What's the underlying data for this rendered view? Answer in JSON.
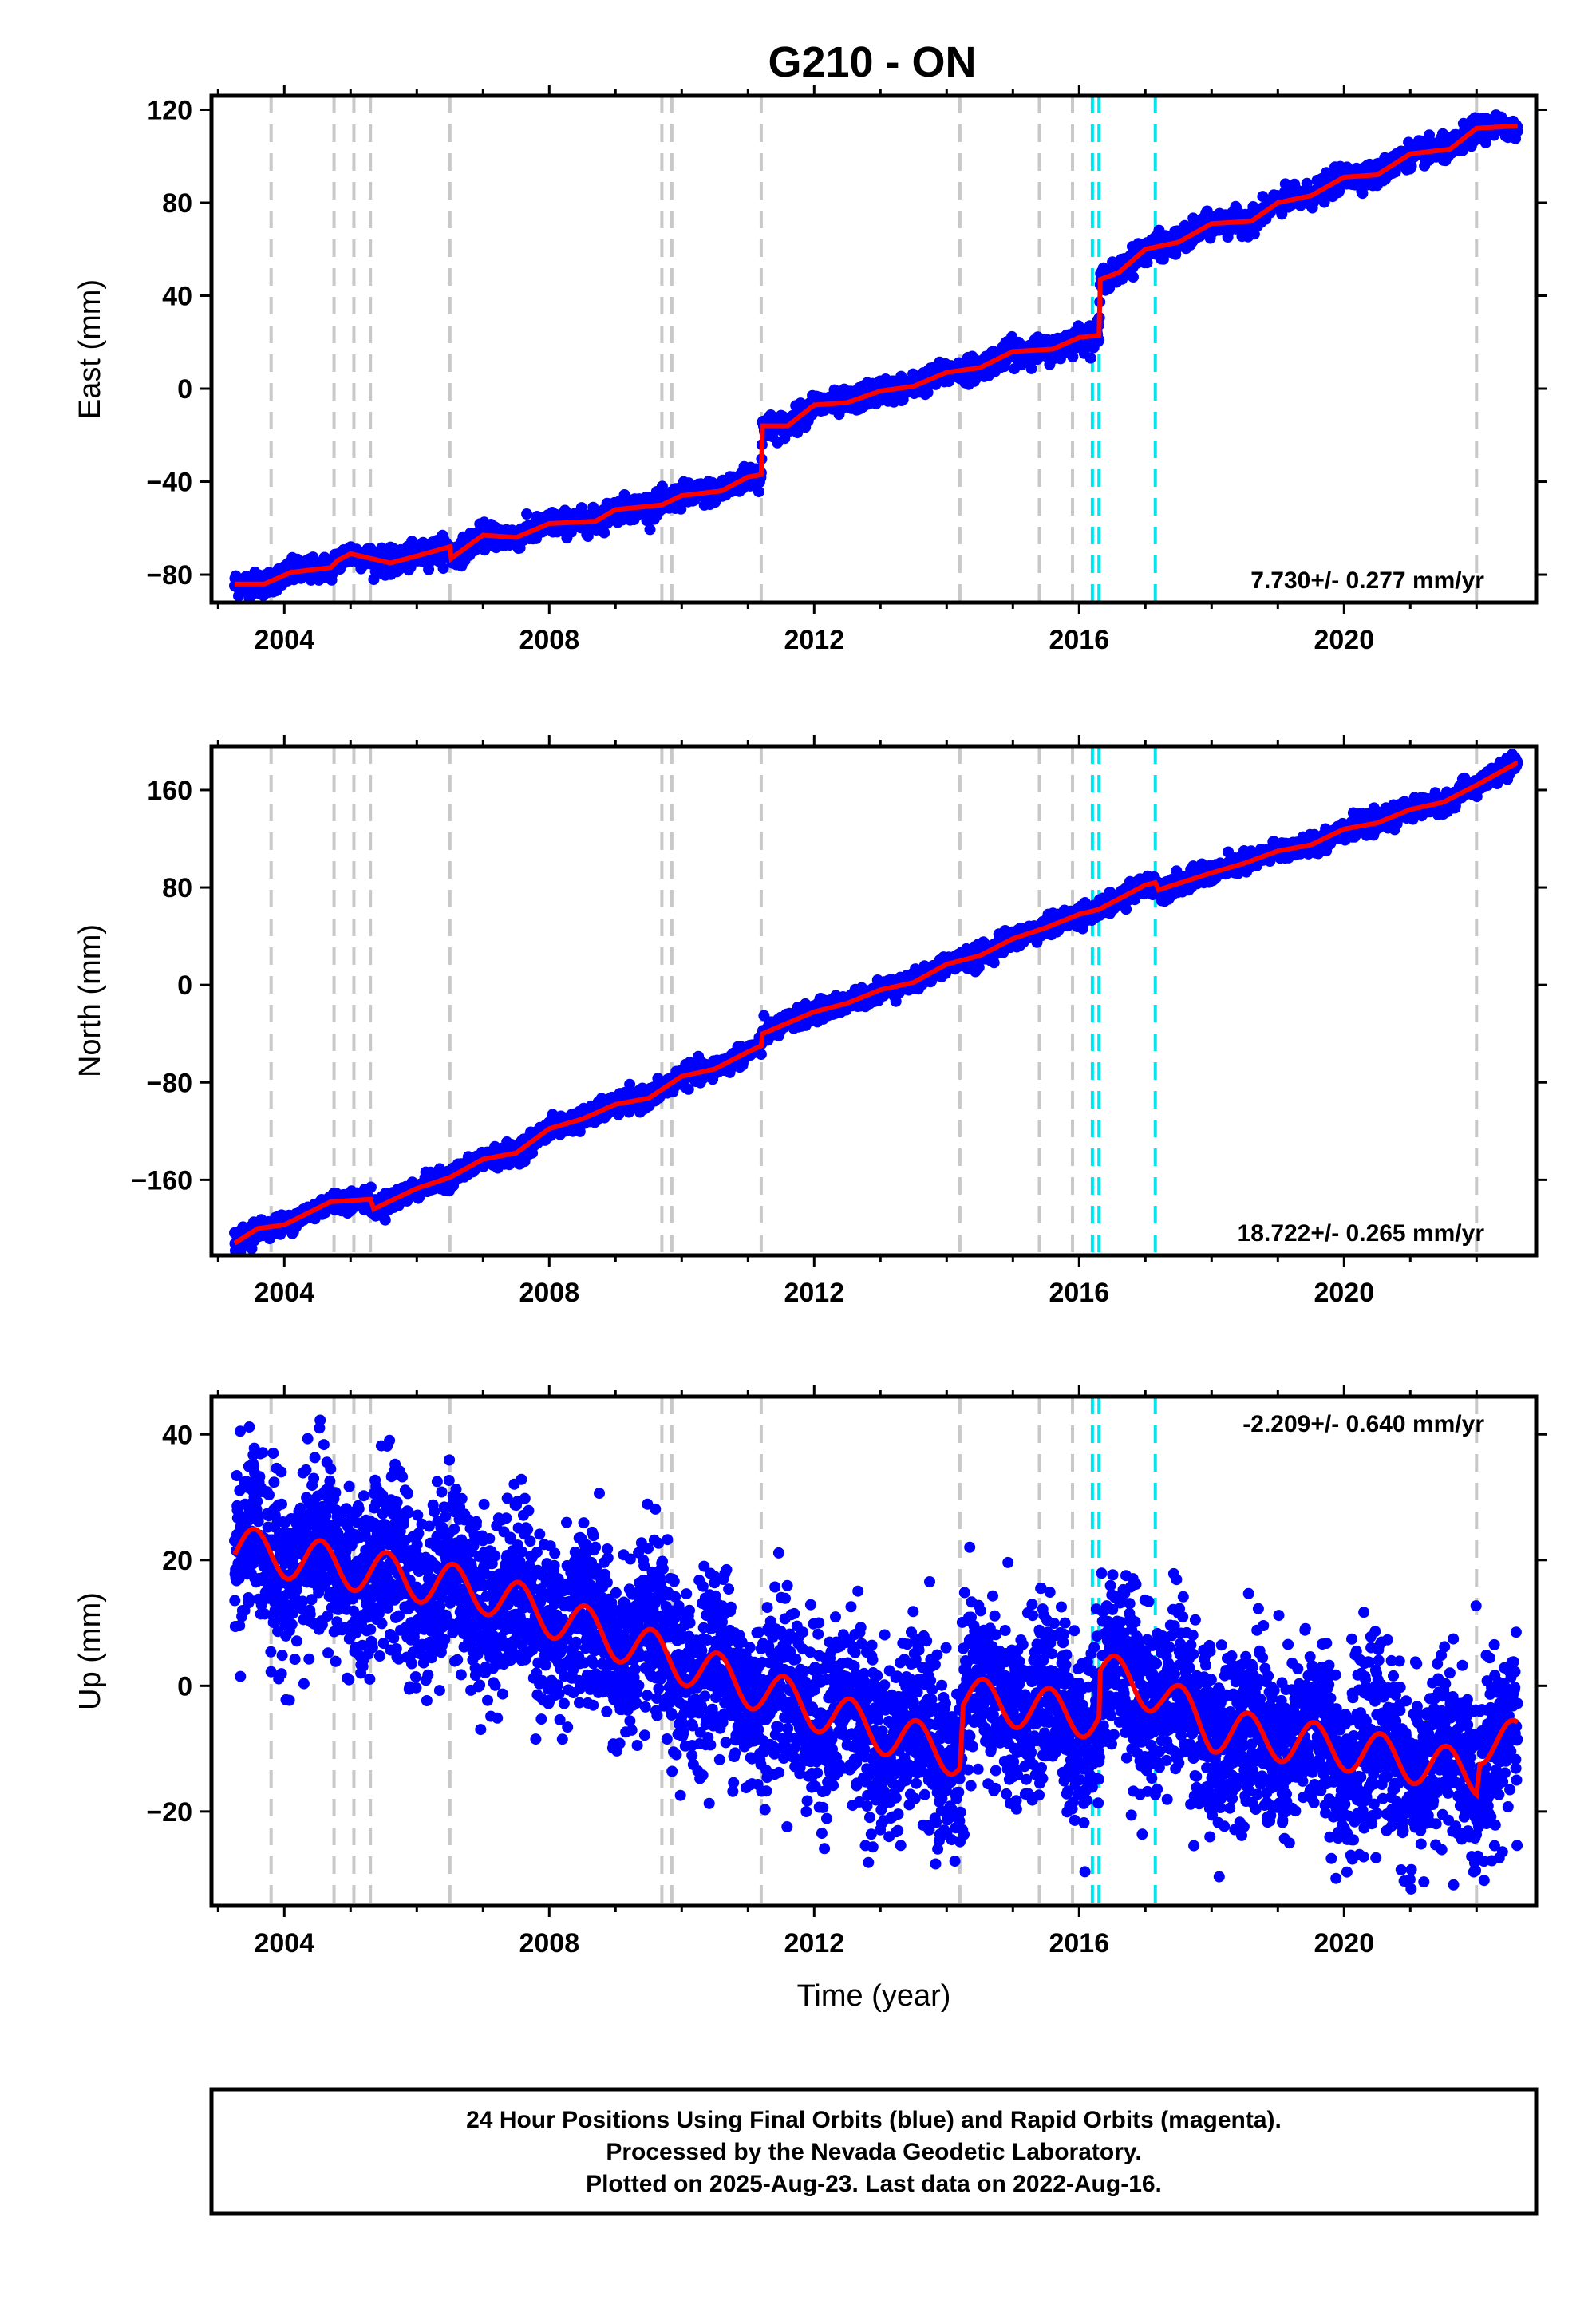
{
  "title": "G210 - ON",
  "colors": {
    "data_points": "#0000ff",
    "model_line": "#ff0000",
    "equipment_change": "#c8c8c8",
    "earthquake": "#00e5ee"
  },
  "chart_data": [
    {
      "type": "scatter",
      "component": "east",
      "ylabel": "East (mm)",
      "xlabel": "",
      "xlim": [
        2002.9,
        2022.9
      ],
      "ylim": [
        -92,
        126
      ],
      "x_ticks": [
        2004,
        2008,
        2012,
        2016,
        2020
      ],
      "y_ticks": [
        -80,
        -40,
        0,
        40,
        80,
        120
      ],
      "y_tick_labels": [
        "−80",
        "−40",
        "0",
        "40",
        "80",
        "120"
      ],
      "rate_text": "7.730+/- 0.277 mm/yr",
      "rate_position": "bottom-right",
      "gray_dashed_x": [
        2003.8,
        2004.75,
        2005.05,
        2005.3,
        2006.5,
        2009.7,
        2009.85,
        2011.2,
        2014.2,
        2015.4,
        2015.9,
        2022.0
      ],
      "cyan_dashed_x": [
        2016.2,
        2016.3,
        2017.15
      ],
      "model_curve": [
        [
          2003.25,
          -84
        ],
        [
          2003.7,
          -84
        ],
        [
          2004.1,
          -79
        ],
        [
          2004.7,
          -77
        ],
        [
          2004.8,
          -74
        ],
        [
          2005.0,
          -71
        ],
        [
          2005.3,
          -73
        ],
        [
          2005.6,
          -75
        ],
        [
          2006.0,
          -72
        ],
        [
          2006.5,
          -68
        ],
        [
          2006.52,
          -73
        ],
        [
          2007.0,
          -63
        ],
        [
          2007.5,
          -64
        ],
        [
          2008.0,
          -58
        ],
        [
          2008.7,
          -57
        ],
        [
          2009.0,
          -52
        ],
        [
          2009.7,
          -50
        ],
        [
          2010.0,
          -46
        ],
        [
          2010.6,
          -44
        ],
        [
          2011.0,
          -38
        ],
        [
          2011.2,
          -37
        ],
        [
          2011.22,
          -16
        ],
        [
          2011.6,
          -16
        ],
        [
          2012.0,
          -7
        ],
        [
          2012.5,
          -6
        ],
        [
          2013.0,
          -1
        ],
        [
          2013.5,
          1
        ],
        [
          2014.0,
          7
        ],
        [
          2014.5,
          9
        ],
        [
          2015.0,
          16
        ],
        [
          2015.6,
          17
        ],
        [
          2016.0,
          22
        ],
        [
          2016.3,
          23
        ],
        [
          2016.32,
          47
        ],
        [
          2016.6,
          50
        ],
        [
          2017.0,
          60
        ],
        [
          2017.5,
          63
        ],
        [
          2018.0,
          71
        ],
        [
          2018.6,
          72
        ],
        [
          2019.0,
          80
        ],
        [
          2019.5,
          83
        ],
        [
          2020.0,
          91
        ],
        [
          2020.5,
          92
        ],
        [
          2021.0,
          101
        ],
        [
          2021.6,
          103
        ],
        [
          2022.0,
          112
        ],
        [
          2022.6,
          113
        ]
      ],
      "scatter_noise_mm": 2.5
    },
    {
      "type": "scatter",
      "component": "north",
      "ylabel": "North (mm)",
      "xlabel": "",
      "xlim": [
        2002.9,
        2022.9
      ],
      "ylim": [
        -222,
        196
      ],
      "x_ticks": [
        2004,
        2008,
        2012,
        2016,
        2020
      ],
      "y_ticks": [
        -160,
        -80,
        0,
        80,
        160
      ],
      "y_tick_labels": [
        "−160",
        "−80",
        "0",
        "80",
        "160"
      ],
      "rate_text": "18.722+/- 0.265 mm/yr",
      "rate_position": "bottom-right",
      "gray_dashed_x": [
        2003.8,
        2004.75,
        2005.05,
        2005.3,
        2006.5,
        2009.7,
        2009.85,
        2011.2,
        2014.2,
        2015.4,
        2015.9,
        2022.0
      ],
      "cyan_dashed_x": [
        2016.2,
        2016.3,
        2017.15
      ],
      "model_curve": [
        [
          2003.25,
          -212
        ],
        [
          2003.6,
          -200
        ],
        [
          2004.0,
          -197
        ],
        [
          2004.7,
          -178
        ],
        [
          2005.3,
          -176
        ],
        [
          2005.35,
          -184
        ],
        [
          2006.0,
          -167
        ],
        [
          2006.5,
          -158
        ],
        [
          2007.0,
          -143
        ],
        [
          2007.5,
          -138
        ],
        [
          2008.0,
          -118
        ],
        [
          2008.5,
          -110
        ],
        [
          2009.0,
          -98
        ],
        [
          2009.5,
          -93
        ],
        [
          2010.0,
          -75
        ],
        [
          2010.5,
          -69
        ],
        [
          2011.0,
          -55
        ],
        [
          2011.2,
          -50
        ],
        [
          2011.22,
          -40
        ],
        [
          2012.0,
          -22
        ],
        [
          2012.5,
          -15
        ],
        [
          2013.0,
          -4
        ],
        [
          2013.5,
          2
        ],
        [
          2014.0,
          17
        ],
        [
          2014.5,
          24
        ],
        [
          2015.0,
          38
        ],
        [
          2015.5,
          47
        ],
        [
          2016.0,
          58
        ],
        [
          2016.3,
          62
        ],
        [
          2017.0,
          82
        ],
        [
          2017.15,
          84
        ],
        [
          2017.2,
          78
        ],
        [
          2018.0,
          92
        ],
        [
          2018.5,
          100
        ],
        [
          2019.0,
          110
        ],
        [
          2019.5,
          115
        ],
        [
          2020.0,
          128
        ],
        [
          2020.5,
          133
        ],
        [
          2021.0,
          144
        ],
        [
          2021.5,
          150
        ],
        [
          2022.0,
          164
        ],
        [
          2022.6,
          182
        ]
      ],
      "scatter_noise_mm": 4
    },
    {
      "type": "scatter",
      "component": "up",
      "ylabel": "Up (mm)",
      "xlabel": "Time (year)",
      "xlim": [
        2002.9,
        2022.9
      ],
      "ylim": [
        -35,
        46
      ],
      "x_ticks": [
        2004,
        2008,
        2012,
        2016,
        2020
      ],
      "y_ticks": [
        -20,
        0,
        20,
        40
      ],
      "y_tick_labels": [
        "−20",
        "0",
        "20",
        "40"
      ],
      "rate_text": "-2.209+/- 0.640 mm/yr",
      "rate_position": "top-right",
      "gray_dashed_x": [
        2003.8,
        2004.75,
        2005.05,
        2005.3,
        2006.5,
        2009.7,
        2009.85,
        2011.2,
        2014.2,
        2015.4,
        2015.9,
        2022.0
      ],
      "cyan_dashed_x": [
        2016.2,
        2016.3,
        2017.15
      ],
      "model_trend": [
        [
          2003.25,
          22
        ],
        [
          2007.0,
          15
        ],
        [
          2011.0,
          0
        ],
        [
          2013.2,
          -8
        ],
        [
          2014.2,
          -11
        ],
        [
          2014.25,
          -2
        ],
        [
          2016.3,
          -5
        ],
        [
          2016.32,
          2
        ],
        [
          2017.2,
          -1
        ],
        [
          2018.0,
          -7
        ],
        [
          2020.0,
          -10
        ],
        [
          2022.0,
          -14
        ],
        [
          2022.05,
          -9
        ],
        [
          2022.6,
          -9
        ]
      ],
      "model_seasonal_amplitude_mm": 3.5,
      "scatter_noise_mm": 7
    }
  ],
  "footer": {
    "line1": "24 Hour Positions Using Final Orbits (blue) and Rapid Orbits (magenta).",
    "line2": "Processed by the Nevada Geodetic Laboratory.",
    "line3": "Plotted on 2025-Aug-23. Last data on 2022-Aug-16."
  }
}
